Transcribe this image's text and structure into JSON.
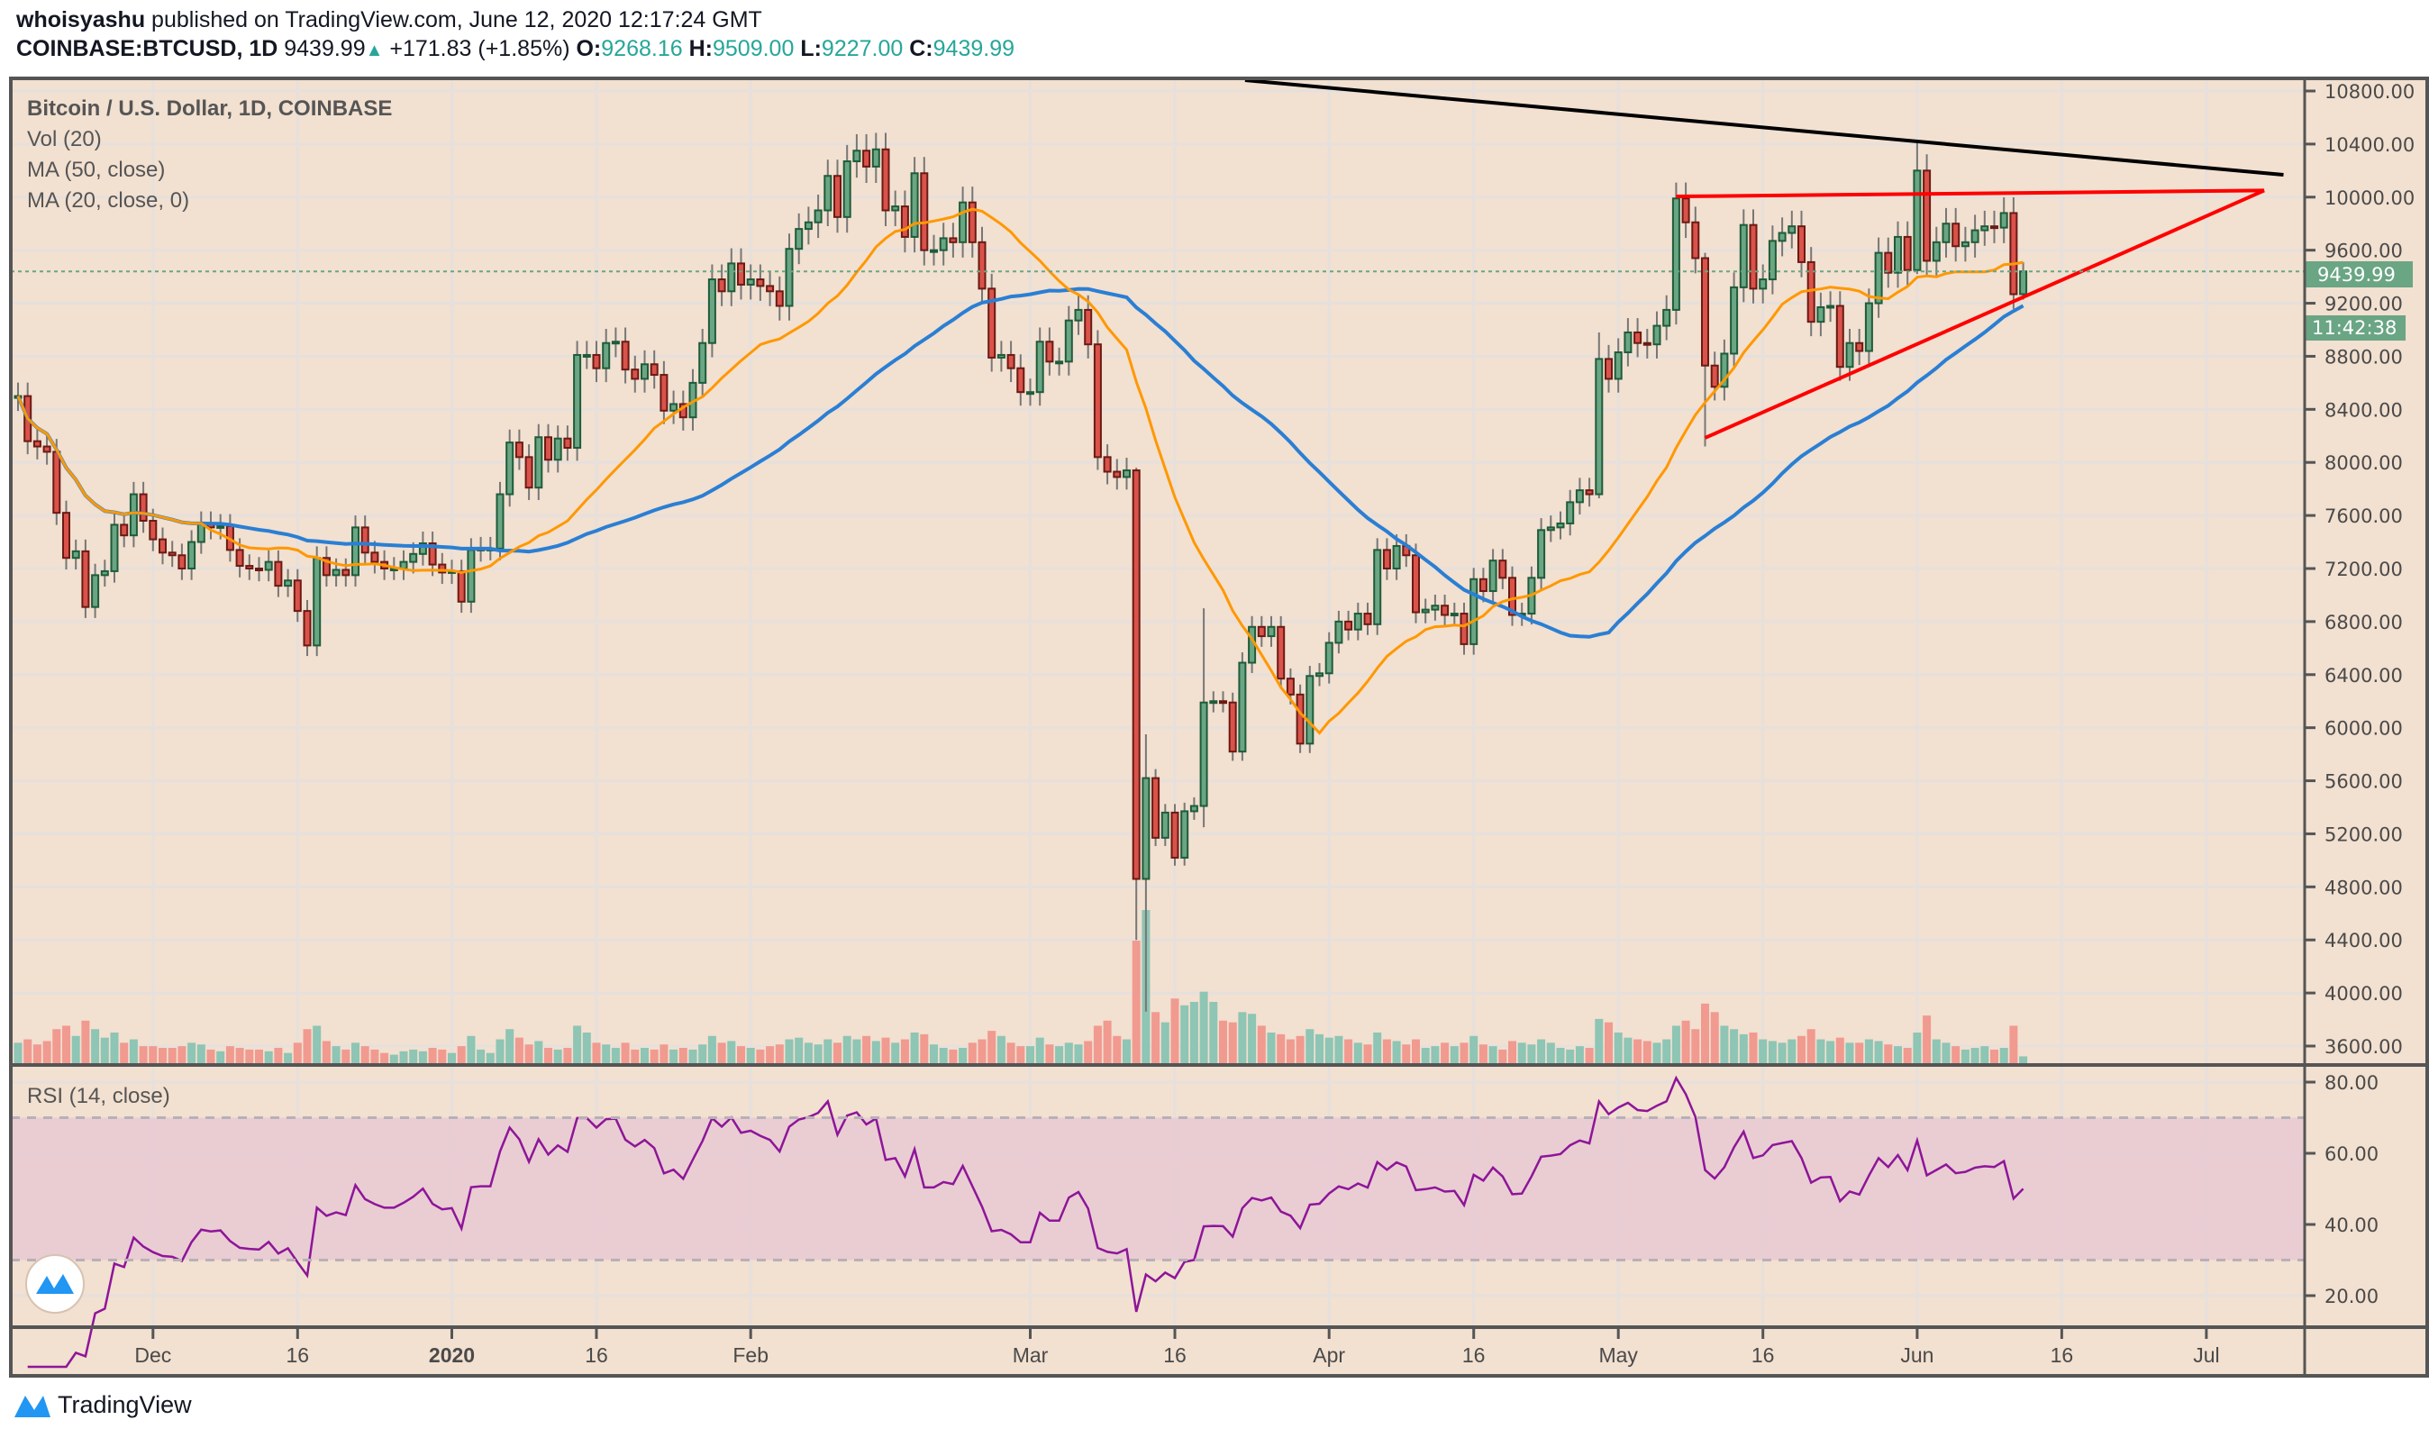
{
  "header": {
    "author": "whoisyashu",
    "published": "published on TradingView.com, June 12, 2020 12:17:24 GMT",
    "symbol": "COINBASE:BTCUSD, 1D",
    "last": "9439.99",
    "change": "+171.83 (+1.85%)",
    "o_label": "O:",
    "o": "9268.16",
    "h_label": "H:",
    "h": "9509.00",
    "l_label": "L:",
    "l": "9227.00",
    "c_label": "C:",
    "c": "9439.99",
    "up_icon": "triangle-up-icon"
  },
  "legend": {
    "title": "Bitcoin / U.S. Dollar, 1D, COINBASE",
    "vol": "Vol (20)",
    "ma50": "MA (50, close)",
    "ma20": "MA (20, close, 0)",
    "rsi": "RSI (14, close)"
  },
  "price_label": "9439.99",
  "countdown": "11:42:38",
  "brand": "TradingView",
  "colors": {
    "background": "#f2e0d0",
    "up": "#6aa584",
    "up_border": "#1e5c3a",
    "down": "#d9534a",
    "down_border": "#6b1a14",
    "vol_up": "#8ec5b4",
    "vol_down": "#f19a90",
    "ma20": "#ff9800",
    "ma50": "#2a7fd4",
    "rsi": "#8e1599",
    "rsi_band": "#e8c9d3",
    "trendline_black": "#000000",
    "trendline_red": "#ff0000",
    "price_label": "#6aa584"
  },
  "chart_data": {
    "type": "candlestick",
    "start_date": "2019-11-17",
    "first_open": 8490,
    "close": [
      8500,
      8160,
      8120,
      8080,
      7620,
      7280,
      7330,
      6910,
      7150,
      7180,
      7530,
      7450,
      7760,
      7560,
      7420,
      7320,
      7300,
      7200,
      7400,
      7540,
      7510,
      7520,
      7340,
      7220,
      7200,
      7190,
      7250,
      7070,
      7110,
      6880,
      6620,
      7280,
      7150,
      7190,
      7150,
      7510,
      7320,
      7250,
      7200,
      7200,
      7250,
      7310,
      7390,
      7230,
      7170,
      7180,
      6950,
      7340,
      7350,
      7350,
      7760,
      8150,
      8040,
      7810,
      8190,
      8020,
      8180,
      8110,
      8810,
      8810,
      8710,
      8900,
      8910,
      8700,
      8630,
      8740,
      8660,
      8390,
      8440,
      8340,
      8600,
      8900,
      9380,
      9290,
      9500,
      9340,
      9380,
      9330,
      9290,
      9180,
      9610,
      9760,
      9810,
      9900,
      10160,
      9850,
      10270,
      10350,
      10230,
      10360,
      9900,
      9930,
      9700,
      10180,
      9600,
      9600,
      9690,
      9660,
      9960,
      9660,
      9310,
      8790,
      8810,
      8710,
      8530,
      8530,
      8910,
      8760,
      8760,
      9070,
      9150,
      8890,
      8040,
      7930,
      7890,
      7940,
      4860,
      5620,
      5170,
      5360,
      5020,
      5370,
      5410,
      6190,
      6200,
      6190,
      5820,
      6490,
      6760,
      6690,
      6760,
      6370,
      6250,
      5880,
      6390,
      6410,
      6640,
      6800,
      6740,
      6860,
      6780,
      7340,
      7200,
      7370,
      7300,
      6870,
      6890,
      6920,
      6850,
      6860,
      6630,
      7120,
      7030,
      7260,
      7130,
      6850,
      6860,
      7130,
      7490,
      7510,
      7540,
      7700,
      7790,
      7760,
      8780,
      8630,
      8830,
      8980,
      8900,
      8890,
      9030,
      9150,
      9990,
      9810,
      9540,
      8730,
      8570,
      8820,
      9320,
      9790,
      9310,
      9380,
      9670,
      9730,
      9780,
      9510,
      9060,
      9170,
      9180,
      8720,
      8900,
      8840,
      9200,
      9580,
      9430,
      9700,
      9450,
      10200,
      9520,
      9660,
      9800,
      9630,
      9660,
      9750,
      9780,
      9770,
      9880,
      9268.16,
      9439.99
    ],
    "extremes": [
      {
        "date": "2020-03-12",
        "high": 7960,
        "low": 4400
      },
      {
        "date": "2020-03-13",
        "high": 5950,
        "low": 3860
      },
      {
        "date": "2020-03-19",
        "high": 6900,
        "low": 5250
      },
      {
        "date": "2020-04-29",
        "high": 8980,
        "low": 7730
      },
      {
        "date": "2020-05-10",
        "high": 9580,
        "low": 8120
      },
      {
        "date": "2020-06-01",
        "high": 10430,
        "low": 9420
      },
      {
        "date": "2020-06-12",
        "high": 9509,
        "low": 9227
      }
    ],
    "volume_kbtc": [
      12,
      14,
      11,
      13,
      20,
      22,
      16,
      25,
      20,
      15,
      18,
      12,
      14,
      10,
      10,
      9,
      9,
      10,
      12,
      11,
      8,
      7,
      10,
      9,
      8,
      8,
      7,
      9,
      6,
      12,
      20,
      22,
      13,
      10,
      8,
      12,
      10,
      8,
      6,
      5,
      7,
      8,
      7,
      9,
      8,
      6,
      10,
      16,
      8,
      6,
      14,
      20,
      15,
      11,
      13,
      9,
      8,
      9,
      22,
      18,
      12,
      11,
      9,
      12,
      8,
      9,
      8,
      11,
      8,
      9,
      8,
      11,
      16,
      12,
      13,
      10,
      9,
      8,
      10,
      11,
      14,
      15,
      12,
      11,
      14,
      12,
      16,
      14,
      16,
      13,
      15,
      12,
      14,
      18,
      17,
      11,
      9,
      8,
      9,
      12,
      14,
      19,
      16,
      12,
      10,
      10,
      15,
      11,
      10,
      12,
      11,
      13,
      22,
      25,
      16,
      14,
      72,
      90,
      30,
      24,
      38,
      34,
      36,
      42,
      36,
      25,
      24,
      30,
      29,
      22,
      18,
      17,
      14,
      16,
      20,
      17,
      15,
      16,
      14,
      12,
      11,
      18,
      14,
      13,
      11,
      14,
      9,
      10,
      12,
      10,
      12,
      16,
      11,
      10,
      8,
      13,
      12,
      11,
      14,
      12,
      9,
      8,
      10,
      9,
      26,
      24,
      18,
      15,
      14,
      13,
      12,
      14,
      22,
      25,
      20,
      35,
      30,
      22,
      20,
      17,
      18,
      14,
      13,
      12,
      14,
      16,
      20,
      14,
      13,
      15,
      12,
      12,
      14,
      13,
      11,
      10,
      9,
      18,
      28,
      14,
      12,
      10,
      8,
      9,
      10,
      8,
      9,
      22,
      4
    ],
    "ma_periods": [
      20,
      50
    ],
    "rsi_period": 14,
    "rsi_bands": [
      30,
      70
    ],
    "price_ticks": [
      "3600.00",
      "4000.00",
      "4400.00",
      "4800.00",
      "5200.00",
      "5600.00",
      "6000.00",
      "6400.00",
      "6800.00",
      "7200.00",
      "7600.00",
      "8000.00",
      "8400.00",
      "8800.00",
      "9200.00",
      "9600.00",
      "10000.00",
      "10400.00",
      "10800.00"
    ],
    "rsi_ticks": [
      "20.00",
      "40.00",
      "60.00",
      "80.00"
    ],
    "time_ticks": [
      {
        "date": "2019-12-01",
        "label": "Dec"
      },
      {
        "date": "2019-12-16",
        "label": "16"
      },
      {
        "date": "2020-01-01",
        "label": "2020",
        "bold": true
      },
      {
        "date": "2020-01-16",
        "label": "16"
      },
      {
        "date": "2020-02-01",
        "label": "Feb"
      },
      {
        "date": "2020-03-01",
        "label": "Mar"
      },
      {
        "date": "2020-03-16",
        "label": "16"
      },
      {
        "date": "2020-04-01",
        "label": "Apr"
      },
      {
        "date": "2020-04-16",
        "label": "16"
      },
      {
        "date": "2020-05-01",
        "label": "May"
      },
      {
        "date": "2020-05-16",
        "label": "16"
      },
      {
        "date": "2020-06-01",
        "label": "Jun"
      },
      {
        "date": "2020-06-16",
        "label": "16"
      },
      {
        "date": "2020-07-01",
        "label": "Jul"
      }
    ],
    "drawings": [
      {
        "name": "descending-resistance",
        "color": "#000000",
        "from": [
          "2020-03-22",
          10890
        ],
        "to": [
          "2020-07-09",
          10168
        ]
      },
      {
        "name": "triangle-top",
        "color": "#ff0000",
        "from": [
          "2020-05-07",
          10005
        ],
        "to": [
          "2020-07-07",
          10050
        ]
      },
      {
        "name": "triangle-rising-support",
        "color": "#ff0000",
        "from": [
          "2020-05-10",
          8185
        ],
        "to": [
          "2020-07-07",
          10050
        ]
      }
    ]
  }
}
